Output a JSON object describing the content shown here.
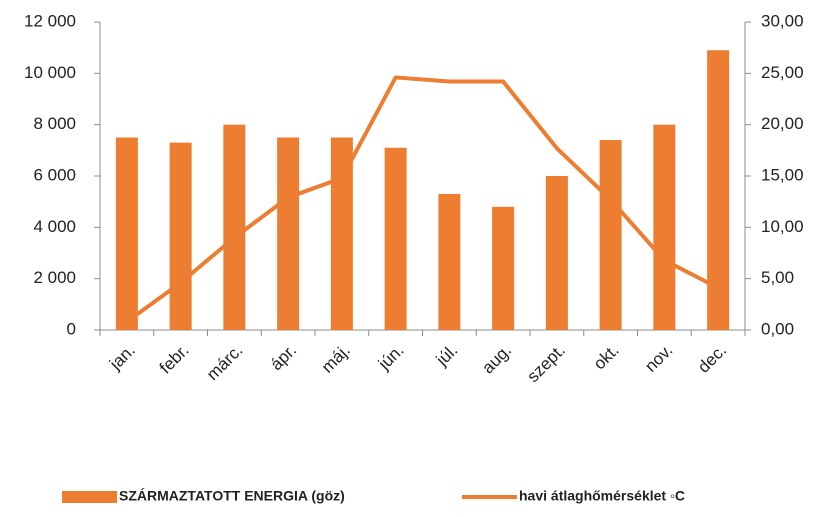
{
  "chart_data": {
    "type": "bar",
    "categories": [
      "jan.",
      "febr.",
      "márc.",
      "ápr.",
      "máj.",
      "jún.",
      "júl.",
      "aug.",
      "szept.",
      "okt.",
      "nov.",
      "dec."
    ],
    "series": [
      {
        "name": "SZÁRMAZTATOTT ENERGIA (göz)",
        "type": "bar",
        "color": "#ED7D31",
        "values": [
          7500,
          7300,
          8000,
          7500,
          7500,
          7100,
          5300,
          4800,
          6000,
          7400,
          8000,
          10900
        ]
      },
      {
        "name": "havi átlaghőmérséklet ◦C",
        "type": "line",
        "axis": "y2",
        "color": "#ED7D31",
        "values": [
          0.8,
          4.6,
          9.0,
          12.9,
          14.8,
          24.6,
          24.2,
          24.2,
          17.7,
          12.7,
          6.8,
          4.1
        ]
      }
    ],
    "ylim": [
      0,
      12000
    ],
    "yticks": [
      0,
      {
        "value": 2000,
        "label": "2 000"
      },
      {
        "value": 4000,
        "label": "4 000"
      },
      {
        "value": 6000,
        "label": "6 000"
      },
      {
        "value": 8000,
        "label": "8 000"
      },
      {
        "value": 10000,
        "label": "10 000"
      },
      {
        "value": 12000,
        "label": "12 000"
      }
    ],
    "y2lim": [
      0,
      30
    ],
    "y2ticks": [
      {
        "value": 0,
        "label": "0,00"
      },
      {
        "value": 5,
        "label": "5,00"
      },
      {
        "value": 10,
        "label": "10,00"
      },
      {
        "value": 15,
        "label": "15,00"
      },
      {
        "value": 20,
        "label": "20,00"
      },
      {
        "value": 25,
        "label": "25,00"
      },
      {
        "value": 30,
        "label": "30,00"
      }
    ],
    "grid": false,
    "legend": "bottom"
  }
}
